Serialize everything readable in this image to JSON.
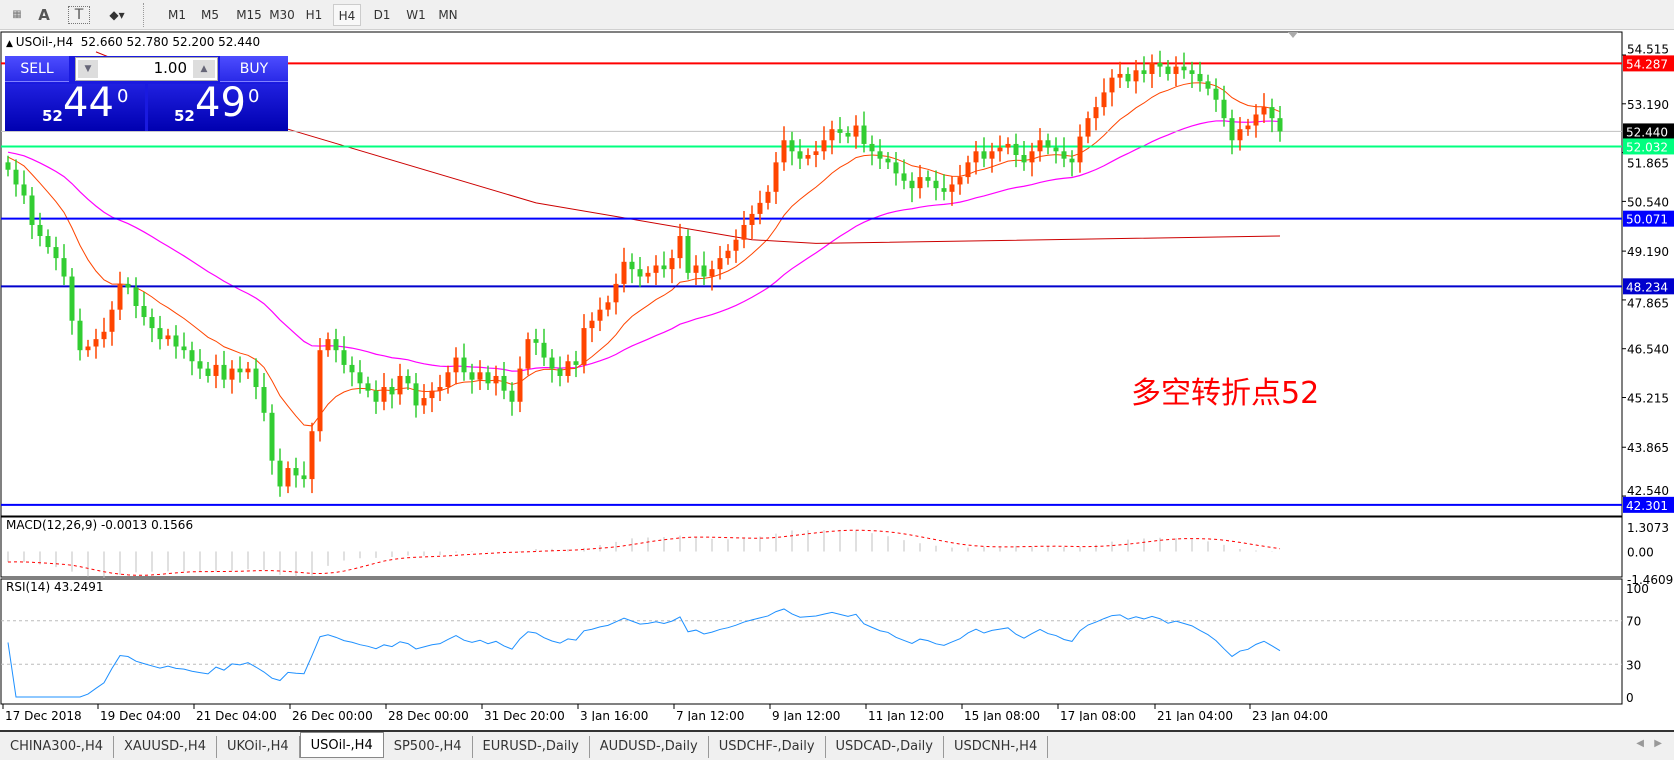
{
  "toolbar": {
    "periods": [
      "M1",
      "M5",
      "M15",
      "M30",
      "H1",
      "H4",
      "D1",
      "W1",
      "MN"
    ],
    "active_period": "H4",
    "icons": [
      "grid-f-icon",
      "text-a-icon",
      "text-label-icon",
      "shapes-icon"
    ]
  },
  "header": {
    "symbol_info": "USOil-,H4  52.660 52.780 52.200 52.440"
  },
  "trade": {
    "sell_label": "SELL",
    "buy_label": "BUY",
    "volume": "1.00",
    "sell_small": "52",
    "sell_big": "44",
    "sell_sup": "0",
    "buy_small": "52",
    "buy_big": "49",
    "buy_sup": "0"
  },
  "annotation": "多空转折点52",
  "colors": {
    "bull": "#ff4500",
    "bear": "#32cd32",
    "ma_fast": "#ff4500",
    "ma_mid": "#ff00ff",
    "ma_slow": "#cc0000",
    "rsi": "#1e90ff",
    "macd_signal": "#ff0000",
    "macd_hist": "#c0c0c0"
  },
  "chart_data": [
    {
      "type": "candlestick",
      "symbol": "USOil-",
      "timeframe": "H4",
      "close": [
        51.4,
        51.0,
        50.7,
        49.9,
        49.6,
        49.3,
        49.0,
        48.5,
        47.3,
        46.5,
        46.6,
        46.8,
        47.0,
        47.6,
        48.3,
        48.2,
        47.7,
        47.4,
        47.1,
        46.8,
        46.9,
        46.6,
        46.5,
        46.2,
        46.0,
        45.8,
        46.1,
        45.7,
        46.0,
        45.9,
        46.0,
        45.5,
        44.8,
        43.5,
        42.8,
        43.3,
        43.1,
        43.0,
        44.3,
        46.5,
        46.8,
        46.5,
        46.1,
        45.9,
        45.6,
        45.4,
        45.1,
        45.5,
        45.3,
        45.8,
        45.6,
        45.0,
        45.2,
        45.4,
        45.5,
        45.9,
        46.3,
        45.9,
        45.7,
        45.9,
        45.6,
        45.8,
        45.4,
        45.1,
        46.0,
        46.8,
        46.7,
        46.3,
        46.0,
        45.8,
        46.2,
        46.1,
        47.1,
        47.3,
        47.6,
        47.8,
        48.3,
        48.9,
        48.7,
        48.5,
        48.6,
        48.8,
        48.7,
        49.0,
        49.6,
        48.6,
        48.8,
        48.5,
        48.7,
        49.0,
        49.2,
        49.5,
        49.9,
        50.2,
        50.5,
        50.8,
        51.6,
        52.2,
        51.9,
        51.7,
        51.8,
        51.9,
        52.2,
        52.5,
        52.4,
        52.3,
        52.6,
        52.1,
        51.9,
        51.7,
        51.6,
        51.3,
        51.1,
        50.9,
        51.2,
        51.1,
        50.9,
        50.8,
        51.0,
        51.2,
        51.6,
        51.9,
        51.7,
        51.9,
        52.0,
        52.1,
        51.8,
        51.6,
        51.9,
        52.2,
        52.0,
        51.9,
        51.7,
        51.6,
        52.3,
        52.8,
        53.1,
        53.5,
        53.9,
        54.0,
        53.8,
        54.1,
        54.0,
        54.3,
        54.2,
        54.0,
        54.2,
        54.1,
        54.0,
        53.8,
        53.6,
        53.3,
        52.8,
        52.2,
        52.5,
        52.6,
        52.9,
        53.1,
        52.8,
        52.44
      ],
      "ma_slow_samples": [
        [
          11,
          54.6
        ],
        [
          35,
          52.5
        ],
        [
          66,
          50.5
        ],
        [
          93,
          49.5
        ],
        [
          101,
          49.4
        ],
        [
          159,
          49.6
        ]
      ],
      "y_ticks": [
        "54.515",
        "53.190",
        "51.865",
        "50.540",
        "49.190",
        "47.865",
        "46.540",
        "45.215",
        "43.865",
        "42.540"
      ],
      "y_tick_values": [
        54.515,
        53.19,
        51.865,
        50.54,
        49.19,
        47.865,
        46.54,
        45.215,
        43.865,
        42.54
      ],
      "ylim": [
        42.0,
        55.2
      ],
      "x_ticks": [
        "17 Dec 2018",
        "19 Dec 04:00",
        "21 Dec 04:00",
        "26 Dec 00:00",
        "28 Dec 00:00",
        "31 Dec 20:00",
        "3 Jan 16:00",
        "7 Jan 12:00",
        "9 Jan 12:00",
        "11 Jan 12:00",
        "15 Jan 08:00",
        "17 Jan 08:00",
        "21 Jan 04:00",
        "23 Jan 04:00"
      ],
      "hlines": [
        {
          "value": 54.287,
          "label": "54.287",
          "color": "#ff0000"
        },
        {
          "value": 52.44,
          "label": "52.440",
          "color": "#000000",
          "line": "#c0c0c0"
        },
        {
          "value": 52.032,
          "label": "52.032",
          "color": "#00ff7f"
        },
        {
          "value": 50.071,
          "label": "50.071",
          "color": "#0000ff"
        },
        {
          "value": 48.234,
          "label": "48.234",
          "color": "#0000cd"
        },
        {
          "value": 42.301,
          "label": "42.301",
          "color": "#0000ff"
        }
      ]
    },
    {
      "type": "macd",
      "title": "MACD(12,26,9) -0.0013 0.1566",
      "y_ticks": [
        "1.3073",
        "0.00",
        "-1.4609"
      ],
      "ylim": [
        -1.4609,
        1.3073
      ]
    },
    {
      "type": "rsi",
      "title": "RSI(14) 43.2491",
      "y_ticks": [
        "100",
        "70",
        "30",
        "0"
      ],
      "ylim": [
        0,
        100
      ],
      "levels": [
        70,
        30
      ]
    }
  ],
  "tabs": [
    "CHINA300-,H4",
    "XAUUSD-,H4",
    "UKOil-,H4",
    "USOil-,H4",
    "SP500-,H4",
    "EURUSD-,Daily",
    "AUDUSD-,Daily",
    "USDCHF-,Daily",
    "USDCAD-,Daily",
    "USDCNH-,H4"
  ],
  "active_tab": "USOil-,H4"
}
